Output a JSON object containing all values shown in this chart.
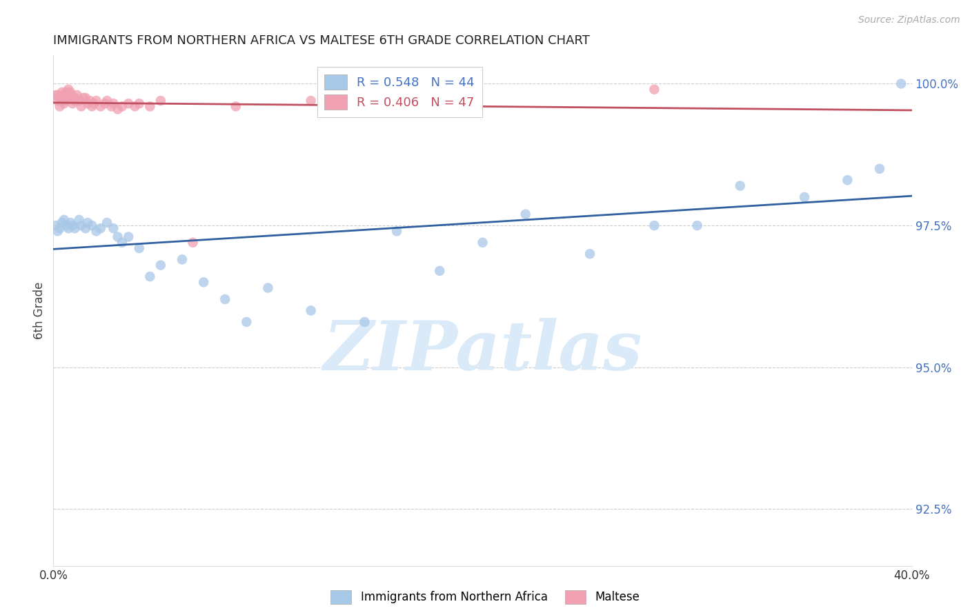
{
  "title": "IMMIGRANTS FROM NORTHERN AFRICA VS MALTESE 6TH GRADE CORRELATION CHART",
  "source": "Source: ZipAtlas.com",
  "ylabel": "6th Grade",
  "watermark": "ZIPatlas",
  "legend_blue_r": "R = 0.548",
  "legend_blue_n": "N = 44",
  "legend_pink_r": "R = 0.406",
  "legend_pink_n": "N = 47",
  "blue_color": "#a8c8e8",
  "pink_color": "#f0a0b0",
  "blue_line_color": "#3060a0",
  "pink_line_color": "#c05060",
  "xmin": 0.0,
  "xmax": 0.4,
  "ymin": 0.915,
  "ymax": 1.005,
  "background_color": "#ffffff",
  "grid_color": "#cccccc",
  "title_fontsize": 13,
  "right_axis_color": "#4472c4",
  "watermark_color": "#daeaf8",
  "blue_x": [
    0.001,
    0.002,
    0.003,
    0.004,
    0.005,
    0.006,
    0.007,
    0.008,
    0.009,
    0.01,
    0.012,
    0.013,
    0.015,
    0.016,
    0.018,
    0.02,
    0.022,
    0.025,
    0.028,
    0.03,
    0.032,
    0.035,
    0.04,
    0.045,
    0.05,
    0.06,
    0.07,
    0.08,
    0.09,
    0.1,
    0.12,
    0.145,
    0.16,
    0.18,
    0.2,
    0.22,
    0.25,
    0.28,
    0.3,
    0.32,
    0.35,
    0.37,
    0.385,
    0.395
  ],
  "blue_y": [
    0.975,
    0.974,
    0.9745,
    0.9755,
    0.976,
    0.975,
    0.9745,
    0.9755,
    0.975,
    0.9745,
    0.976,
    0.975,
    0.9745,
    0.9755,
    0.975,
    0.974,
    0.9745,
    0.9755,
    0.9745,
    0.973,
    0.972,
    0.973,
    0.971,
    0.966,
    0.968,
    0.969,
    0.965,
    0.962,
    0.958,
    0.964,
    0.96,
    0.958,
    0.974,
    0.967,
    0.972,
    0.977,
    0.97,
    0.975,
    0.975,
    0.982,
    0.98,
    0.983,
    0.985,
    1.0
  ],
  "pink_x": [
    0.001,
    0.002,
    0.002,
    0.003,
    0.003,
    0.004,
    0.004,
    0.005,
    0.005,
    0.005,
    0.006,
    0.006,
    0.007,
    0.007,
    0.008,
    0.008,
    0.009,
    0.009,
    0.01,
    0.01,
    0.011,
    0.012,
    0.013,
    0.014,
    0.015,
    0.016,
    0.017,
    0.018,
    0.019,
    0.02,
    0.022,
    0.024,
    0.025,
    0.027,
    0.028,
    0.03,
    0.032,
    0.035,
    0.038,
    0.04,
    0.045,
    0.05,
    0.065,
    0.085,
    0.12,
    0.19,
    0.28
  ],
  "pink_y": [
    0.998,
    0.997,
    0.998,
    0.996,
    0.9975,
    0.997,
    0.9985,
    0.9975,
    0.9965,
    0.998,
    0.9985,
    0.997,
    0.9975,
    0.999,
    0.9985,
    0.998,
    0.9975,
    0.9965,
    0.997,
    0.9975,
    0.998,
    0.997,
    0.996,
    0.9975,
    0.9975,
    0.9965,
    0.997,
    0.996,
    0.9965,
    0.997,
    0.996,
    0.9965,
    0.997,
    0.996,
    0.9965,
    0.9955,
    0.996,
    0.9965,
    0.996,
    0.9965,
    0.996,
    0.997,
    0.972,
    0.996,
    0.997,
    0.999,
    0.999
  ]
}
